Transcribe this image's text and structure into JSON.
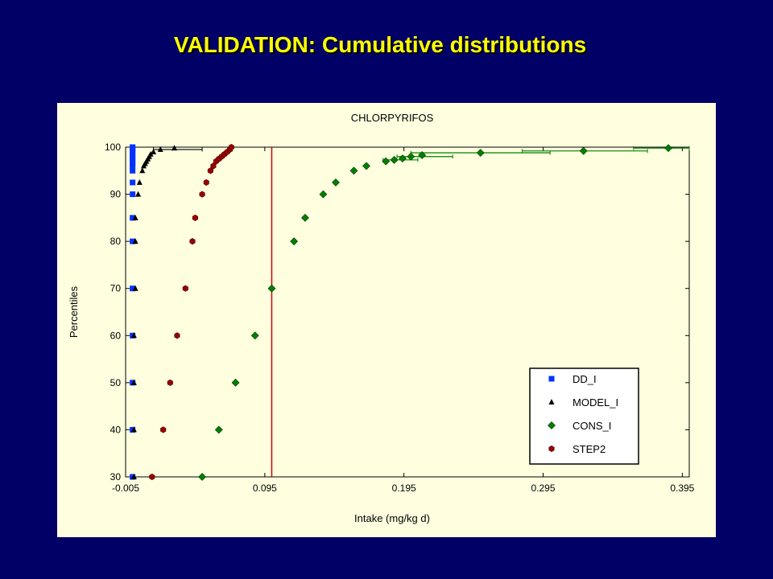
{
  "slide_title": "VALIDATION: Cumulative distributions",
  "chart_data": {
    "type": "scatter",
    "title": "CHLORPYRIFOS",
    "xlabel": "Intake (mg/kg d)",
    "ylabel": "Percentiles",
    "xlim": [
      -0.005,
      0.4
    ],
    "ylim": [
      30,
      100
    ],
    "xticks": [
      -0.005,
      0.095,
      0.195,
      0.295,
      0.395
    ],
    "xtick_labels": [
      "-0.005",
      "0.095",
      "0.195",
      "0.295",
      "0.395"
    ],
    "yticks": [
      30,
      40,
      50,
      60,
      70,
      80,
      90,
      100
    ],
    "grid": false,
    "legend_position": "bottom-right",
    "reference_line": {
      "x": 0.1,
      "color": "#cc0000"
    },
    "series": [
      {
        "name": "DD_I",
        "marker": "square",
        "color": "#0033ff",
        "points": [
          [
            0,
            30
          ],
          [
            0,
            40
          ],
          [
            0,
            50
          ],
          [
            0,
            60
          ],
          [
            0,
            70
          ],
          [
            0,
            80
          ],
          [
            0,
            85
          ],
          [
            0,
            90
          ],
          [
            0,
            92.5
          ],
          [
            0,
            95
          ],
          [
            0,
            96
          ],
          [
            0,
            96.5
          ],
          [
            0,
            97
          ],
          [
            0,
            97.5
          ],
          [
            0,
            98
          ],
          [
            0,
            98.5
          ],
          [
            0,
            99
          ],
          [
            0,
            99.5
          ],
          [
            0,
            99.8
          ],
          [
            0,
            100
          ]
        ]
      },
      {
        "name": "MODEL_I",
        "marker": "triangle",
        "color": "#000000",
        "points": [
          [
            0.001,
            30
          ],
          [
            0.001,
            40
          ],
          [
            0.001,
            50
          ],
          [
            0.001,
            60
          ],
          [
            0.002,
            70
          ],
          [
            0.002,
            80
          ],
          [
            0.002,
            85
          ],
          [
            0.004,
            90
          ],
          [
            0.005,
            92.5
          ],
          [
            0.007,
            95
          ],
          [
            0.008,
            96
          ],
          [
            0.009,
            96.5
          ],
          [
            0.01,
            97
          ],
          [
            0.011,
            97.5
          ],
          [
            0.012,
            98
          ],
          [
            0.013,
            98.5
          ],
          [
            0.015,
            99
          ],
          [
            0.02,
            99.5
          ],
          [
            0.03,
            99.8
          ]
        ],
        "error_bars": [
          [
            0.025,
            99.5,
            0.015,
            0.05
          ]
        ]
      },
      {
        "name": "CONS_I",
        "marker": "diamond",
        "color": "#008000",
        "points": [
          [
            0.05,
            30
          ],
          [
            0.062,
            40
          ],
          [
            0.074,
            50
          ],
          [
            0.088,
            60
          ],
          [
            0.1,
            70
          ],
          [
            0.116,
            80
          ],
          [
            0.124,
            85
          ],
          [
            0.137,
            90
          ],
          [
            0.146,
            92.5
          ],
          [
            0.159,
            95
          ],
          [
            0.168,
            96
          ],
          [
            0.182,
            97
          ],
          [
            0.188,
            97.3
          ],
          [
            0.194,
            97.6
          ],
          [
            0.2,
            98
          ],
          [
            0.208,
            98.3
          ],
          [
            0.25,
            98.8
          ],
          [
            0.324,
            99.2
          ],
          [
            0.385,
            99.8
          ]
        ],
        "error_bars": [
          [
            0.25,
            98.8,
            0.2,
            0.3
          ],
          [
            0.324,
            99.2,
            0.28,
            0.37
          ],
          [
            0.385,
            99.8,
            0.36,
            0.4
          ],
          [
            0.2,
            98,
            0.19,
            0.23
          ],
          [
            0.188,
            97.3,
            0.18,
            0.205
          ]
        ]
      },
      {
        "name": "STEP2",
        "marker": "hexagon",
        "color": "#990000",
        "points": [
          [
            0.014,
            30
          ],
          [
            0.022,
            40
          ],
          [
            0.027,
            50
          ],
          [
            0.032,
            60
          ],
          [
            0.038,
            70
          ],
          [
            0.043,
            80
          ],
          [
            0.045,
            85
          ],
          [
            0.05,
            90
          ],
          [
            0.053,
            92.5
          ],
          [
            0.056,
            95
          ],
          [
            0.058,
            96
          ],
          [
            0.06,
            97
          ],
          [
            0.062,
            97.5
          ],
          [
            0.064,
            98
          ],
          [
            0.066,
            98.5
          ],
          [
            0.068,
            99
          ],
          [
            0.07,
            99.5
          ],
          [
            0.071,
            100
          ]
        ]
      }
    ]
  }
}
